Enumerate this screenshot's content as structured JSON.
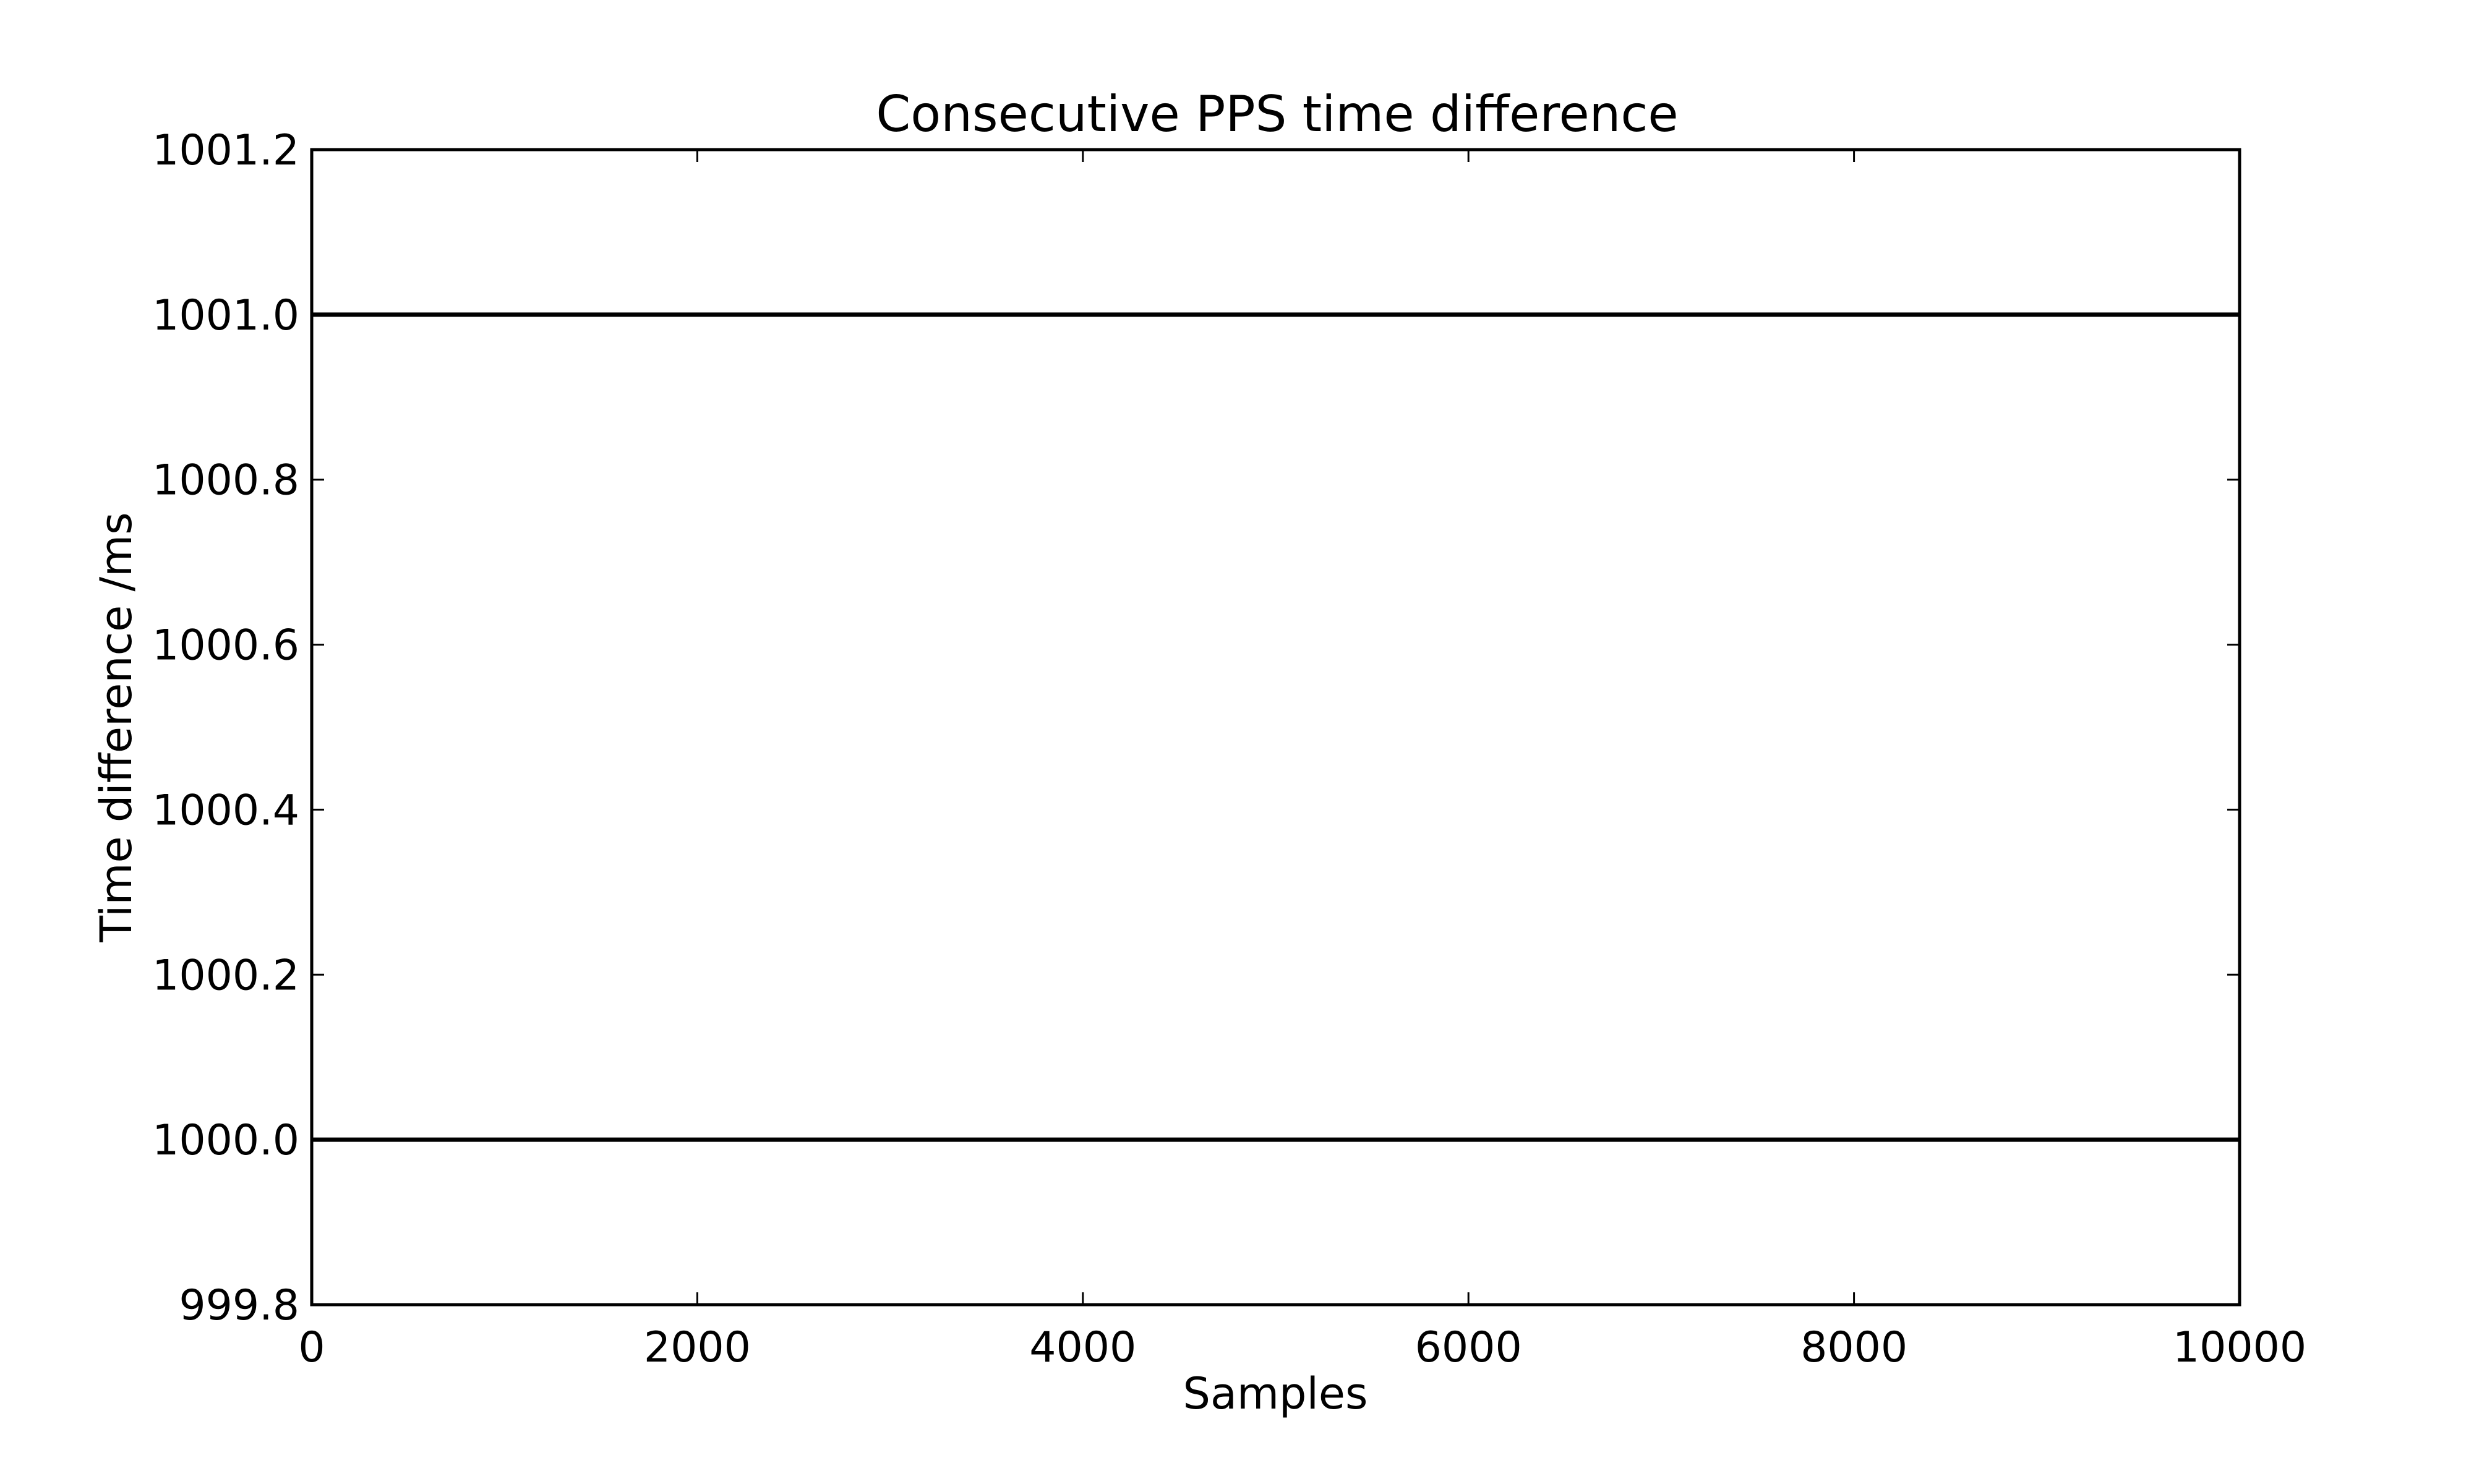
{
  "chart_data": {
    "type": "line",
    "title": "Consecutive PPS time difference",
    "xlabel": "Samples",
    "ylabel": "Time difference /ms",
    "xlim": [
      0,
      10000
    ],
    "ylim": [
      999.8,
      1001.2
    ],
    "xticks": [
      0,
      2000,
      4000,
      6000,
      8000,
      10000
    ],
    "xtick_labels": [
      "0",
      "2000",
      "4000",
      "6000",
      "8000",
      "10000"
    ],
    "yticks": [
      999.8,
      1000.0,
      1000.2,
      1000.4,
      1000.6,
      1000.8,
      1001.0,
      1001.2
    ],
    "ytick_labels": [
      "999.8",
      "1000.0",
      "1000.2",
      "1000.4",
      "1000.6",
      "1000.8",
      "1001.0",
      "1001.2"
    ],
    "grid": false,
    "series": [
      {
        "x": [
          0,
          10000
        ],
        "y": [
          1001.0,
          1001.0
        ],
        "color": "#000000"
      },
      {
        "x": [
          0,
          10000
        ],
        "y": [
          1000.0,
          1000.0
        ],
        "color": "#000000"
      }
    ]
  }
}
